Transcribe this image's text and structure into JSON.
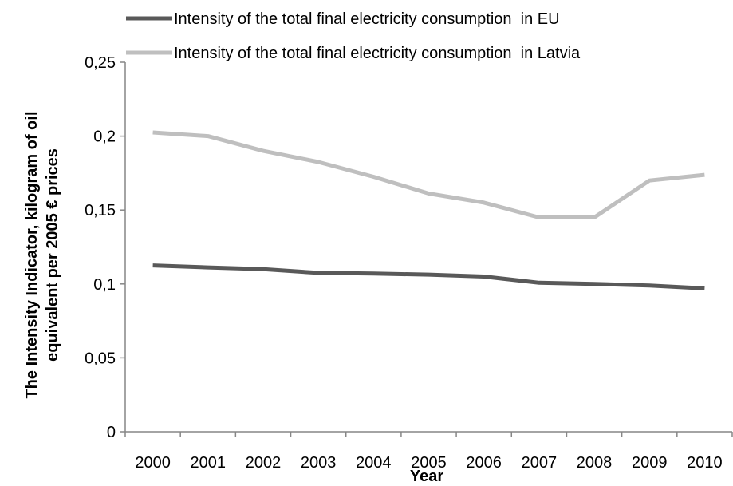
{
  "chart_data": {
    "type": "line",
    "title": "",
    "xlabel": "Year",
    "ylabel_lines": [
      "The Intensity Indicator, kilogram of oil",
      "equivalent per 2005 € prices"
    ],
    "categories": [
      "2000",
      "2001",
      "2002",
      "2003",
      "2004",
      "2005",
      "2006",
      "2007",
      "2008",
      "2009",
      "2010"
    ],
    "ylim": [
      0,
      0.25
    ],
    "y_ticks": [
      0,
      0.05,
      0.1,
      0.15,
      0.2,
      0.25
    ],
    "y_tick_labels": [
      "0",
      "0,05",
      "0,1",
      "0,15",
      "0,2",
      "0,25"
    ],
    "grid": false,
    "legend_position": "top",
    "series": [
      {
        "name": "Intensity of the total final electricity consumption  in EU",
        "color": "#595959",
        "values": [
          0.1125,
          0.1112,
          0.11,
          0.1075,
          0.107,
          0.1063,
          0.105,
          0.1008,
          0.1,
          0.099,
          0.097
        ]
      },
      {
        "name": "Intensity of the total final electricity consumption  in Latvia",
        "color": "#bfbfbf",
        "values": [
          0.2025,
          0.2,
          0.19,
          0.1825,
          0.1725,
          0.1612,
          0.155,
          0.145,
          0.145,
          0.17,
          0.1738
        ]
      }
    ]
  }
}
